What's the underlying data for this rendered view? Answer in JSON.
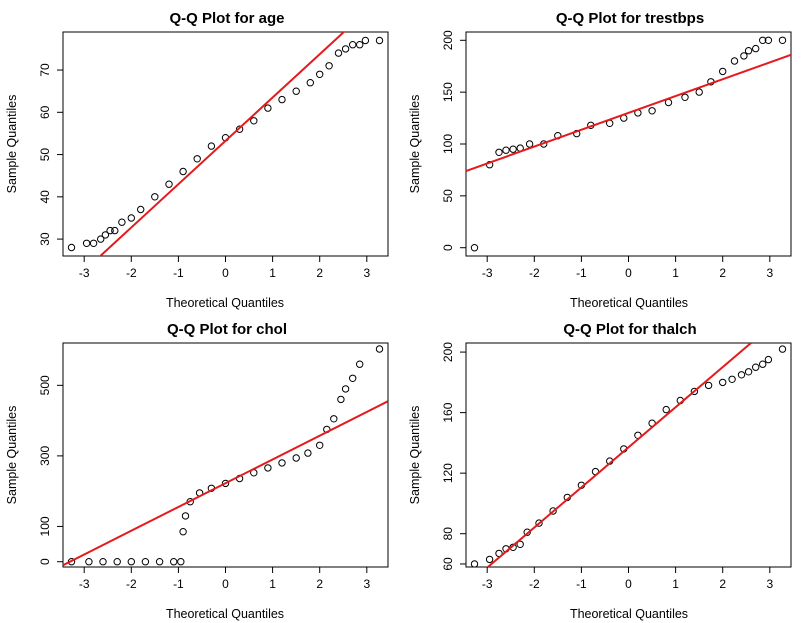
{
  "chart_data": [
    {
      "type": "scatter",
      "title": "Q-Q Plot for age",
      "xlabel": "Theoretical Quantiles",
      "ylabel": "Sample Quantiles",
      "xlim": [
        -3.45,
        3.45
      ],
      "ylim": [
        26,
        79
      ],
      "xticks": [
        -3,
        -2,
        -1,
        0,
        1,
        2,
        3
      ],
      "yticks": [
        30,
        40,
        50,
        60,
        70
      ],
      "reference_line": {
        "color": "#e41a1c",
        "x": [
          -3.0,
          3.0
        ],
        "y": [
          22.5,
          84.0
        ]
      },
      "quantile_points": [
        {
          "x": -3.27,
          "y": 28
        },
        {
          "x": -2.95,
          "y": 29
        },
        {
          "x": -2.8,
          "y": 29
        },
        {
          "x": -2.65,
          "y": 30
        },
        {
          "x": -2.55,
          "y": 31
        },
        {
          "x": -2.45,
          "y": 32
        },
        {
          "x": -2.35,
          "y": 32
        },
        {
          "x": -2.2,
          "y": 34
        },
        {
          "x": -2.0,
          "y": 35
        },
        {
          "x": -1.8,
          "y": 37
        },
        {
          "x": -1.5,
          "y": 40
        },
        {
          "x": -1.2,
          "y": 43
        },
        {
          "x": -0.9,
          "y": 46
        },
        {
          "x": -0.6,
          "y": 49
        },
        {
          "x": -0.3,
          "y": 52
        },
        {
          "x": 0.0,
          "y": 54
        },
        {
          "x": 0.3,
          "y": 56
        },
        {
          "x": 0.6,
          "y": 58
        },
        {
          "x": 0.9,
          "y": 61
        },
        {
          "x": 1.2,
          "y": 63
        },
        {
          "x": 1.5,
          "y": 65
        },
        {
          "x": 1.8,
          "y": 67
        },
        {
          "x": 2.0,
          "y": 69
        },
        {
          "x": 2.2,
          "y": 71
        },
        {
          "x": 2.4,
          "y": 74
        },
        {
          "x": 2.55,
          "y": 75
        },
        {
          "x": 2.7,
          "y": 76
        },
        {
          "x": 2.85,
          "y": 76
        },
        {
          "x": 2.97,
          "y": 77
        },
        {
          "x": 3.27,
          "y": 77
        }
      ]
    },
    {
      "type": "scatter",
      "title": "Q-Q Plot for trestbps",
      "xlabel": "Theoretical Quantiles",
      "ylabel": "Sample Quantiles",
      "xlim": [
        -3.45,
        3.45
      ],
      "ylim": [
        -8,
        208
      ],
      "xticks": [
        -3,
        -2,
        -1,
        0,
        1,
        2,
        3
      ],
      "yticks": [
        0,
        50,
        100,
        150,
        200
      ],
      "reference_line": {
        "color": "#e41a1c",
        "x": [
          -3.45,
          3.45
        ],
        "y": [
          74,
          186
        ]
      },
      "quantile_points": [
        {
          "x": -3.27,
          "y": 0
        },
        {
          "x": -2.95,
          "y": 80
        },
        {
          "x": -2.75,
          "y": 92
        },
        {
          "x": -2.6,
          "y": 94
        },
        {
          "x": -2.45,
          "y": 95
        },
        {
          "x": -2.3,
          "y": 96
        },
        {
          "x": -2.1,
          "y": 100
        },
        {
          "x": -1.8,
          "y": 100
        },
        {
          "x": -1.5,
          "y": 108
        },
        {
          "x": -1.1,
          "y": 110
        },
        {
          "x": -0.8,
          "y": 118
        },
        {
          "x": -0.4,
          "y": 120
        },
        {
          "x": -0.1,
          "y": 125
        },
        {
          "x": 0.2,
          "y": 130
        },
        {
          "x": 0.5,
          "y": 132
        },
        {
          "x": 0.85,
          "y": 140
        },
        {
          "x": 1.2,
          "y": 145
        },
        {
          "x": 1.5,
          "y": 150
        },
        {
          "x": 1.75,
          "y": 160
        },
        {
          "x": 2.0,
          "y": 170
        },
        {
          "x": 2.25,
          "y": 180
        },
        {
          "x": 2.45,
          "y": 185
        },
        {
          "x": 2.55,
          "y": 190
        },
        {
          "x": 2.7,
          "y": 192
        },
        {
          "x": 2.85,
          "y": 200
        },
        {
          "x": 2.97,
          "y": 200
        },
        {
          "x": 3.27,
          "y": 200
        }
      ]
    },
    {
      "type": "scatter",
      "title": "Q-Q Plot for chol",
      "xlabel": "Theoretical Quantiles",
      "ylabel": "Sample Quantiles",
      "xlim": [
        -3.45,
        3.45
      ],
      "ylim": [
        -15,
        620
      ],
      "xticks": [
        -3,
        -2,
        -1,
        0,
        1,
        2,
        3
      ],
      "yticks": [
        0,
        100,
        300,
        500
      ],
      "reference_line": {
        "color": "#e41a1c",
        "x": [
          -3.45,
          3.45
        ],
        "y": [
          -10,
          455
        ]
      },
      "quantile_points": [
        {
          "x": -3.27,
          "y": 0
        },
        {
          "x": -2.9,
          "y": 0
        },
        {
          "x": -2.6,
          "y": 0
        },
        {
          "x": -2.3,
          "y": 0
        },
        {
          "x": -2.0,
          "y": 0
        },
        {
          "x": -1.7,
          "y": 0
        },
        {
          "x": -1.4,
          "y": 0
        },
        {
          "x": -1.1,
          "y": 0
        },
        {
          "x": -0.95,
          "y": 0
        },
        {
          "x": -0.9,
          "y": 85
        },
        {
          "x": -0.85,
          "y": 130
        },
        {
          "x": -0.75,
          "y": 170
        },
        {
          "x": -0.55,
          "y": 195
        },
        {
          "x": -0.3,
          "y": 208
        },
        {
          "x": 0.0,
          "y": 222
        },
        {
          "x": 0.3,
          "y": 236
        },
        {
          "x": 0.6,
          "y": 252
        },
        {
          "x": 0.9,
          "y": 266
        },
        {
          "x": 1.2,
          "y": 280
        },
        {
          "x": 1.5,
          "y": 294
        },
        {
          "x": 1.75,
          "y": 308
        },
        {
          "x": 2.0,
          "y": 330
        },
        {
          "x": 2.15,
          "y": 375
        },
        {
          "x": 2.3,
          "y": 405
        },
        {
          "x": 2.45,
          "y": 460
        },
        {
          "x": 2.55,
          "y": 490
        },
        {
          "x": 2.7,
          "y": 520
        },
        {
          "x": 2.85,
          "y": 560
        },
        {
          "x": 3.27,
          "y": 603
        }
      ]
    },
    {
      "type": "scatter",
      "title": "Q-Q Plot for thalch",
      "xlabel": "Theoretical Quantiles",
      "ylabel": "Sample Quantiles",
      "xlim": [
        -3.45,
        3.45
      ],
      "ylim": [
        58,
        206
      ],
      "xticks": [
        -3,
        -2,
        -1,
        0,
        1,
        2,
        3
      ],
      "yticks": [
        60,
        80,
        120,
        160,
        200
      ],
      "reference_line": {
        "color": "#e41a1c",
        "x": [
          -3.0,
          2.6
        ],
        "y": [
          57.6,
          206.0
        ]
      },
      "quantile_points": [
        {
          "x": -3.27,
          "y": 60
        },
        {
          "x": -2.95,
          "y": 63
        },
        {
          "x": -2.75,
          "y": 67
        },
        {
          "x": -2.6,
          "y": 70
        },
        {
          "x": -2.45,
          "y": 71
        },
        {
          "x": -2.3,
          "y": 73
        },
        {
          "x": -2.15,
          "y": 81
        },
        {
          "x": -1.9,
          "y": 87
        },
        {
          "x": -1.6,
          "y": 95
        },
        {
          "x": -1.3,
          "y": 104
        },
        {
          "x": -1.0,
          "y": 112
        },
        {
          "x": -0.7,
          "y": 121
        },
        {
          "x": -0.4,
          "y": 128
        },
        {
          "x": -0.1,
          "y": 136
        },
        {
          "x": 0.2,
          "y": 145
        },
        {
          "x": 0.5,
          "y": 153
        },
        {
          "x": 0.8,
          "y": 162
        },
        {
          "x": 1.1,
          "y": 168
        },
        {
          "x": 1.4,
          "y": 174
        },
        {
          "x": 1.7,
          "y": 178
        },
        {
          "x": 2.0,
          "y": 180
        },
        {
          "x": 2.2,
          "y": 182
        },
        {
          "x": 2.4,
          "y": 185
        },
        {
          "x": 2.55,
          "y": 187
        },
        {
          "x": 2.7,
          "y": 190
        },
        {
          "x": 2.85,
          "y": 192
        },
        {
          "x": 2.97,
          "y": 195
        },
        {
          "x": 3.27,
          "y": 202
        }
      ]
    }
  ]
}
